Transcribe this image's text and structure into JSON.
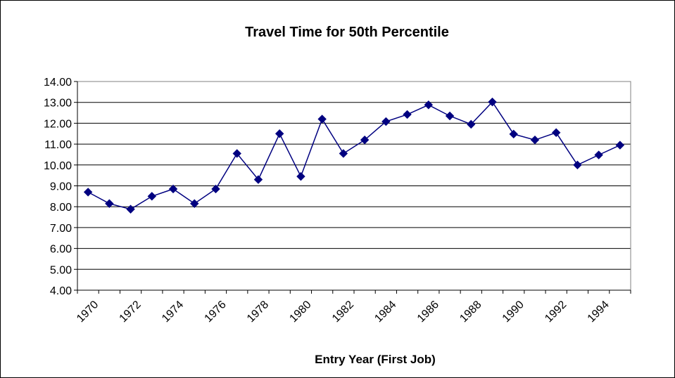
{
  "chart_data": {
    "type": "line",
    "title": "Travel Time for 50th Percentile",
    "xlabel": "Entry Year (First Job)",
    "ylabel": "",
    "ylim": [
      4,
      14
    ],
    "yticks": [
      "4.00",
      "5.00",
      "6.00",
      "7.00",
      "8.00",
      "9.00",
      "10.00",
      "11.00",
      "12.00",
      "13.00",
      "14.00"
    ],
    "x_tick_labels": [
      "1970",
      "1972",
      "1974",
      "1976",
      "1978",
      "1980",
      "1982",
      "1984",
      "1986",
      "1988",
      "1990",
      "1992",
      "1994"
    ],
    "grid": true,
    "legend": "none",
    "series": [
      {
        "color": "#000080",
        "marker": "diamond",
        "x": [
          1970,
          1971,
          1972,
          1973,
          1974,
          1975,
          1976,
          1977,
          1978,
          1979,
          1980,
          1981,
          1982,
          1983,
          1984,
          1985,
          1986,
          1987,
          1988,
          1989,
          1990,
          1991,
          1992,
          1993,
          1994,
          1995
        ],
        "values": [
          8.7,
          8.15,
          7.88,
          8.5,
          8.85,
          8.15,
          8.85,
          10.55,
          9.3,
          11.5,
          9.45,
          12.2,
          10.55,
          11.2,
          12.08,
          12.42,
          12.88,
          12.35,
          11.95,
          13.02,
          11.48,
          11.2,
          11.55,
          10.0,
          10.48,
          10.95
        ]
      }
    ]
  }
}
